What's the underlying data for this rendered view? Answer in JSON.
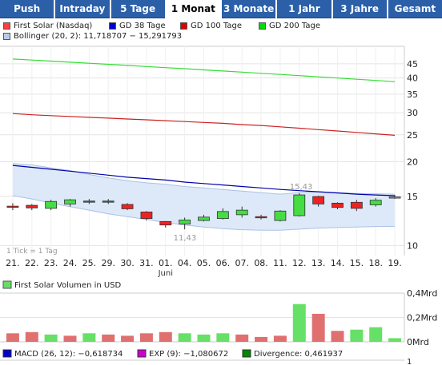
{
  "tabs": [
    {
      "label": "Push",
      "active": false
    },
    {
      "label": "Intraday",
      "active": false
    },
    {
      "label": "5 Tage",
      "active": false
    },
    {
      "label": "1 Monat",
      "active": true
    },
    {
      "label": "3 Monate",
      "active": false
    },
    {
      "label": "1 Jahr",
      "active": false
    },
    {
      "label": "3 Jahre",
      "active": false
    },
    {
      "label": "Gesamt",
      "active": false
    }
  ],
  "legend": {
    "price": {
      "label": "First Solar (Nasdaq)",
      "color": "#ff0000"
    },
    "gd38": {
      "label": "GD 38 Tage",
      "color": "#0000cc"
    },
    "gd100": {
      "label": "GD 100 Tage",
      "color": "#dd0000"
    },
    "gd200": {
      "label": "GD 200 Tage",
      "color": "#00dd00"
    },
    "bollinger": {
      "label": "Bollinger (20, 2): 11,718707 − 15,291793",
      "color": "#b8cce8"
    },
    "volume": {
      "label": "First Solar Volumen in USD",
      "color": "#66dd66"
    },
    "macd": {
      "label": "MACD (26, 12): −0,618734",
      "color": "#0000cc"
    },
    "exp": {
      "label": "EXP (9): −1,080672",
      "color": "#cc00cc"
    },
    "divergence": {
      "label": "Divergence: 0,461937",
      "color": "#008800"
    }
  },
  "footnote": "1 Tick = 1 Tag",
  "month_label": "Juni",
  "chart_data": [
    {
      "type": "candlestick",
      "yscale": "log",
      "ylim": [
        9.2,
        52
      ],
      "yticks": [
        10,
        15,
        20,
        25,
        30,
        35,
        40,
        45
      ],
      "x": [
        "21.",
        "22.",
        "23.",
        "24.",
        "25.",
        "29.",
        "30.",
        "31.",
        "01.",
        "04.",
        "05.",
        "06.",
        "07.",
        "08.",
        "11.",
        "12.",
        "13.",
        "14.",
        "15.",
        "18.",
        "19."
      ],
      "series": [
        {
          "name": "First Solar (Nasdaq)",
          "open": [
            13.85,
            13.95,
            13.6,
            14.1,
            14.45,
            14.45,
            14.05,
            13.2,
            12.2,
            11.95,
            12.3,
            12.5,
            12.9,
            12.7,
            12.3,
            12.8,
            15.0,
            14.2,
            14.3,
            14.0,
            14.95
          ],
          "close": [
            13.8,
            13.65,
            14.4,
            14.6,
            14.35,
            14.4,
            13.55,
            12.5,
            11.85,
            12.35,
            12.65,
            13.25,
            13.4,
            12.65,
            13.3,
            15.2,
            14.1,
            13.7,
            13.6,
            14.55,
            14.95
          ],
          "high": [
            14.2,
            14.1,
            14.6,
            14.7,
            14.7,
            14.7,
            14.2,
            13.3,
            12.25,
            12.6,
            12.9,
            13.6,
            13.8,
            12.9,
            13.4,
            15.43,
            15.1,
            14.3,
            14.6,
            14.8,
            15.2
          ],
          "low": [
            13.4,
            13.4,
            13.4,
            13.8,
            14.1,
            14.1,
            13.4,
            12.3,
            11.6,
            11.43,
            12.2,
            12.4,
            12.6,
            12.4,
            12.2,
            12.7,
            13.8,
            13.5,
            13.3,
            13.8,
            14.7
          ]
        },
        {
          "name": "GD 38 Tage",
          "values": [
            19.4,
            19.1,
            18.8,
            18.5,
            18.2,
            17.9,
            17.6,
            17.4,
            17.2,
            16.9,
            16.7,
            16.5,
            16.3,
            16.1,
            15.9,
            15.75,
            15.6,
            15.45,
            15.3,
            15.2,
            15.1
          ]
        },
        {
          "name": "GD 100 Tage",
          "values": [
            29.8,
            29.5,
            29.3,
            29.1,
            28.9,
            28.7,
            28.5,
            28.3,
            28.1,
            27.9,
            27.7,
            27.5,
            27.2,
            27.0,
            26.7,
            26.4,
            26.1,
            25.8,
            25.5,
            25.2,
            24.9
          ]
        },
        {
          "name": "GD 200 Tage",
          "values": [
            46.8,
            46.4,
            46.0,
            45.6,
            45.2,
            44.8,
            44.4,
            44.0,
            43.6,
            43.2,
            42.8,
            42.4,
            42.0,
            41.6,
            41.2,
            40.8,
            40.4,
            40.0,
            39.6,
            39.2,
            38.8
          ]
        },
        {
          "name": "Bollinger upper",
          "values": [
            19.7,
            19.5,
            19.0,
            18.6,
            18.0,
            17.5,
            17.1,
            16.8,
            16.6,
            16.3,
            16.1,
            15.9,
            15.7,
            15.5,
            15.3,
            15.5,
            15.6,
            15.5,
            15.4,
            15.35,
            15.3
          ]
        },
        {
          "name": "Bollinger lower",
          "values": [
            15.1,
            14.7,
            14.2,
            13.8,
            13.4,
            13.0,
            12.7,
            12.4,
            12.1,
            11.85,
            11.65,
            11.5,
            11.4,
            11.35,
            11.35,
            11.45,
            11.55,
            11.6,
            11.65,
            11.7,
            11.72
          ]
        }
      ],
      "annotations": [
        {
          "x": "12.",
          "value": 15.43,
          "text": "15,43"
        },
        {
          "x": "04.",
          "value": 11.43,
          "text": "11,43"
        }
      ]
    },
    {
      "type": "bar",
      "title": "First Solar Volumen in USD",
      "ylim": [
        0,
        0.4
      ],
      "ytick_labels": [
        "0,4Mrd",
        "0,2Mrd",
        "0Mrd"
      ],
      "x": [
        "21.",
        "22.",
        "23.",
        "24.",
        "25.",
        "29.",
        "30.",
        "31.",
        "01.",
        "04.",
        "05.",
        "06.",
        "07.",
        "08.",
        "11.",
        "12.",
        "13.",
        "14.",
        "15.",
        "18.",
        "19."
      ],
      "values": [
        0.07,
        0.08,
        0.06,
        0.05,
        0.07,
        0.06,
        0.05,
        0.07,
        0.08,
        0.07,
        0.06,
        0.07,
        0.06,
        0.04,
        0.05,
        0.31,
        0.23,
        0.09,
        0.1,
        0.12,
        0.03
      ],
      "up": [
        false,
        false,
        true,
        false,
        true,
        false,
        false,
        false,
        false,
        true,
        true,
        true,
        false,
        false,
        false,
        true,
        false,
        false,
        true,
        true,
        true
      ]
    }
  ],
  "macd_axis_label": "1"
}
